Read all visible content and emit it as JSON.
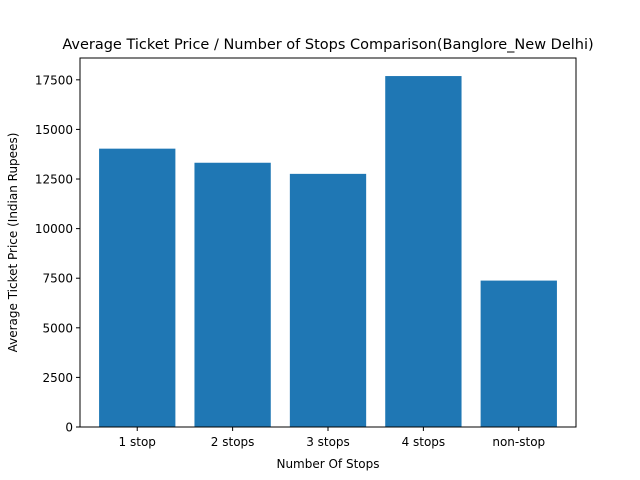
{
  "chart_data": {
    "type": "bar",
    "title": "Average Ticket Price / Number of Stops Comparison(Banglore_New Delhi)",
    "xlabel": "Number Of Stops",
    "ylabel": "Average Ticket Price (Indian Rupees)",
    "categories": [
      "1 stop",
      "2 stops",
      "3 stops",
      "4 stops",
      "non-stop"
    ],
    "values": [
      14030,
      13320,
      12760,
      17690,
      7380
    ],
    "ylim": [
      0,
      18600
    ],
    "yticks": [
      0,
      2500,
      5000,
      7500,
      10000,
      12500,
      15000,
      17500
    ],
    "grid": false,
    "bar_color": "#1f77b4"
  }
}
